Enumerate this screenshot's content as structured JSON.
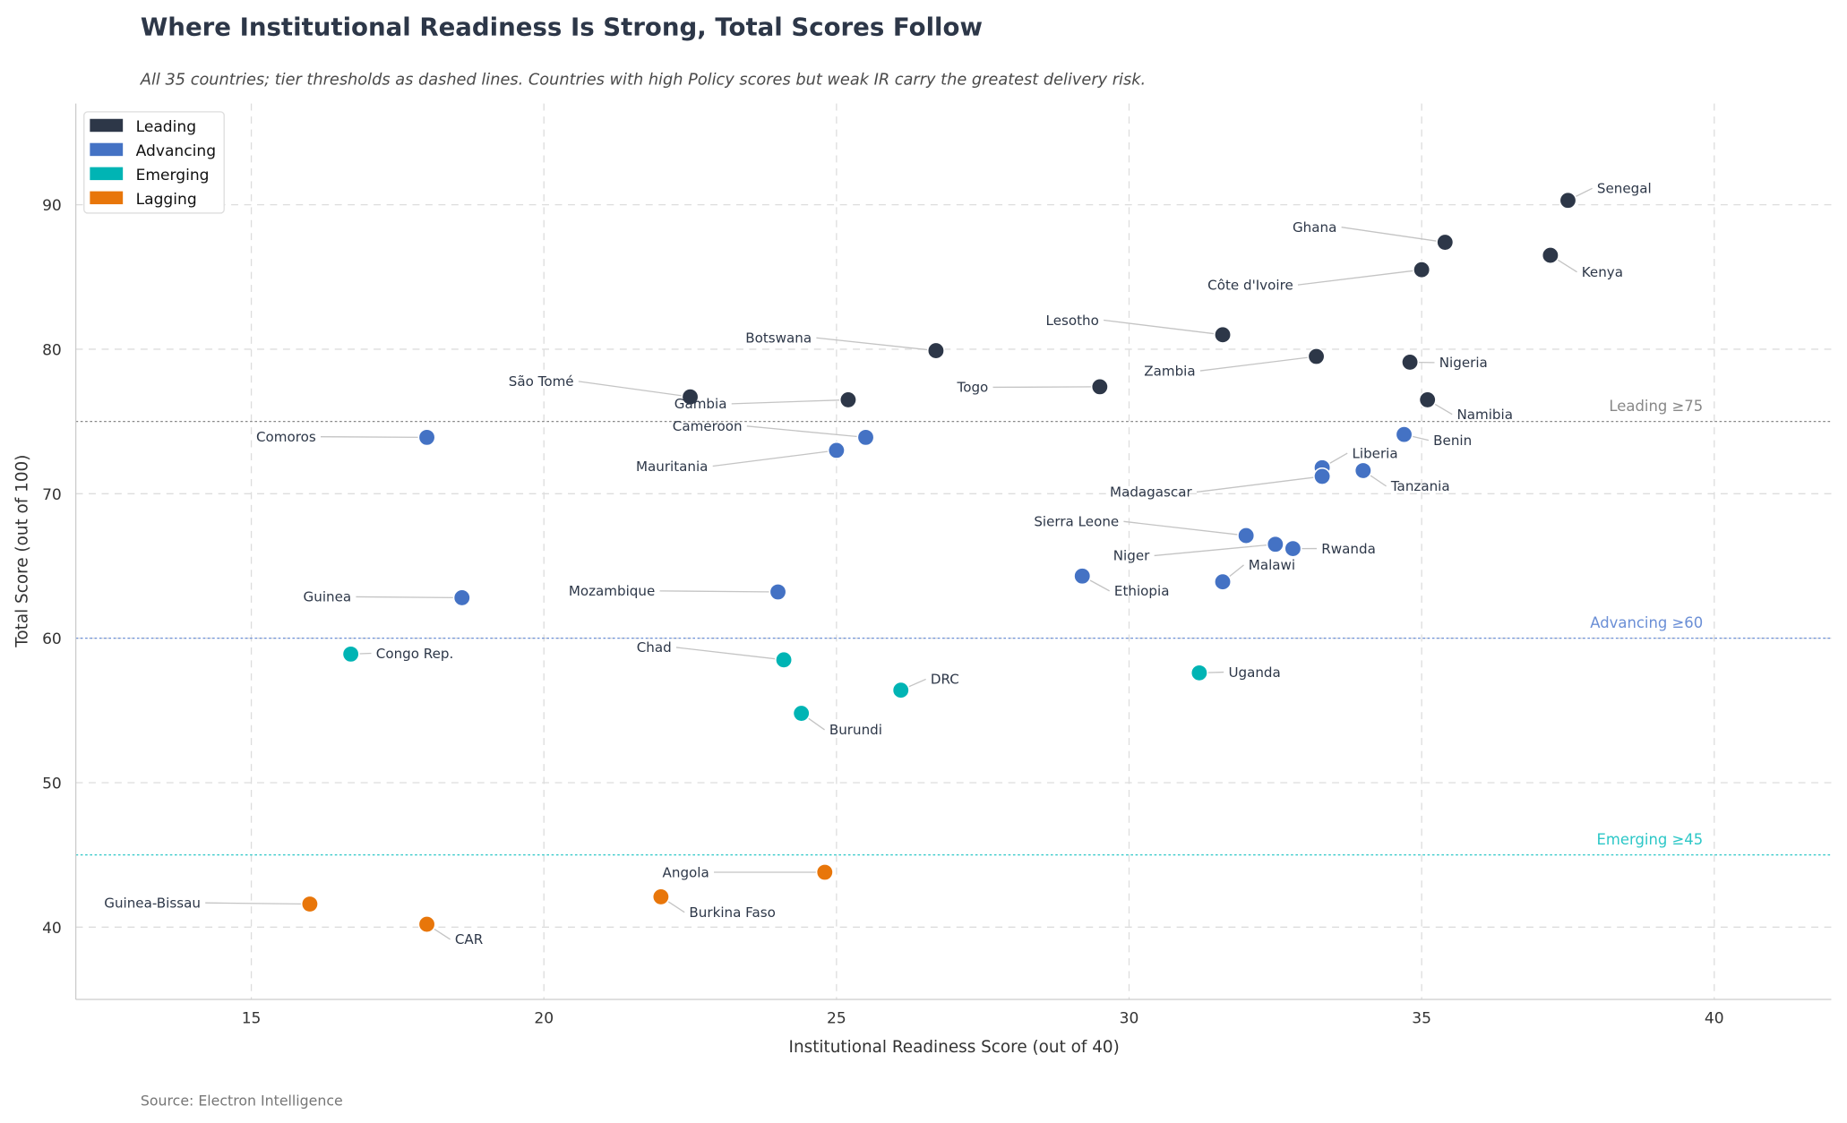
{
  "chart_data": {
    "type": "scatter",
    "title": "Where Institutional Readiness Is Strong, Total Scores Follow",
    "subtitle": "All 35 countries; tier thresholds as dashed lines. Countries with high Policy scores but weak IR carry the greatest delivery risk.",
    "xlabel": "Institutional Readiness Score (out of 40)",
    "ylabel": "Total Score (out of 100)",
    "xlim": [
      12,
      42
    ],
    "ylim": [
      35,
      97
    ],
    "xticks": [
      15,
      20,
      25,
      30,
      35,
      40
    ],
    "yticks": [
      40,
      50,
      60,
      70,
      80,
      90
    ],
    "grid": true,
    "legend_placement": "top-left",
    "source": "Source: Electron Intelligence",
    "tiers": [
      {
        "name": "Leading",
        "color": "#2d3748"
      },
      {
        "name": "Advancing",
        "color": "#4472c4"
      },
      {
        "name": "Emerging",
        "color": "#00b4b4"
      },
      {
        "name": "Lagging",
        "color": "#e8760a"
      }
    ],
    "thresholds": [
      {
        "label": "Leading ≥75",
        "y": 75,
        "color": "#888888"
      },
      {
        "label": "Advancing ≥60",
        "y": 60,
        "color": "#6b8fd6"
      },
      {
        "label": "Emerging ≥45",
        "y": 45,
        "color": "#2cc7c7"
      }
    ],
    "points": [
      {
        "name": "Senegal",
        "x": 37.5,
        "y": 90.3,
        "tier": "Leading"
      },
      {
        "name": "Ghana",
        "x": 35.4,
        "y": 87.4,
        "tier": "Leading"
      },
      {
        "name": "Kenya",
        "x": 37.2,
        "y": 86.5,
        "tier": "Leading"
      },
      {
        "name": "Côte d'Ivoire",
        "x": 35.0,
        "y": 85.5,
        "tier": "Leading"
      },
      {
        "name": "Lesotho",
        "x": 31.6,
        "y": 81.0,
        "tier": "Leading"
      },
      {
        "name": "Botswana",
        "x": 26.7,
        "y": 79.9,
        "tier": "Leading"
      },
      {
        "name": "Zambia",
        "x": 33.2,
        "y": 79.5,
        "tier": "Leading"
      },
      {
        "name": "Nigeria",
        "x": 34.8,
        "y": 79.1,
        "tier": "Leading"
      },
      {
        "name": "Togo",
        "x": 29.5,
        "y": 77.4,
        "tier": "Leading"
      },
      {
        "name": "São Tomé",
        "x": 22.5,
        "y": 76.7,
        "tier": "Leading"
      },
      {
        "name": "Gambia",
        "x": 25.2,
        "y": 76.5,
        "tier": "Leading"
      },
      {
        "name": "Namibia",
        "x": 35.1,
        "y": 76.5,
        "tier": "Leading"
      },
      {
        "name": "Benin",
        "x": 34.7,
        "y": 74.1,
        "tier": "Advancing"
      },
      {
        "name": "Comoros",
        "x": 18.0,
        "y": 73.9,
        "tier": "Advancing"
      },
      {
        "name": "Cameroon",
        "x": 25.5,
        "y": 73.9,
        "tier": "Advancing"
      },
      {
        "name": "Mauritania",
        "x": 25.0,
        "y": 73.0,
        "tier": "Advancing"
      },
      {
        "name": "Liberia",
        "x": 33.3,
        "y": 71.8,
        "tier": "Advancing"
      },
      {
        "name": "Tanzania",
        "x": 34.0,
        "y": 71.6,
        "tier": "Advancing"
      },
      {
        "name": "Madagascar",
        "x": 33.3,
        "y": 71.2,
        "tier": "Advancing"
      },
      {
        "name": "Sierra Leone",
        "x": 32.0,
        "y": 67.1,
        "tier": "Advancing"
      },
      {
        "name": "Niger",
        "x": 32.5,
        "y": 66.5,
        "tier": "Advancing"
      },
      {
        "name": "Rwanda",
        "x": 32.8,
        "y": 66.2,
        "tier": "Advancing"
      },
      {
        "name": "Ethiopia",
        "x": 29.2,
        "y": 64.3,
        "tier": "Advancing"
      },
      {
        "name": "Malawi",
        "x": 31.6,
        "y": 63.9,
        "tier": "Advancing"
      },
      {
        "name": "Mozambique",
        "x": 24.0,
        "y": 63.2,
        "tier": "Advancing"
      },
      {
        "name": "Guinea",
        "x": 18.6,
        "y": 62.8,
        "tier": "Advancing"
      },
      {
        "name": "Congo Rep.",
        "x": 16.7,
        "y": 58.9,
        "tier": "Emerging"
      },
      {
        "name": "Chad",
        "x": 24.1,
        "y": 58.5,
        "tier": "Emerging"
      },
      {
        "name": "Uganda",
        "x": 31.2,
        "y": 57.6,
        "tier": "Emerging"
      },
      {
        "name": "DRC",
        "x": 26.1,
        "y": 56.4,
        "tier": "Emerging"
      },
      {
        "name": "Burundi",
        "x": 24.4,
        "y": 54.8,
        "tier": "Emerging"
      },
      {
        "name": "Angola",
        "x": 24.8,
        "y": 43.8,
        "tier": "Lagging"
      },
      {
        "name": "Burkina Faso",
        "x": 22.0,
        "y": 42.1,
        "tier": "Lagging"
      },
      {
        "name": "Guinea-Bissau",
        "x": 16.0,
        "y": 41.6,
        "tier": "Lagging"
      },
      {
        "name": "CAR",
        "x": 18.0,
        "y": 40.2,
        "tier": "Lagging"
      }
    ]
  }
}
